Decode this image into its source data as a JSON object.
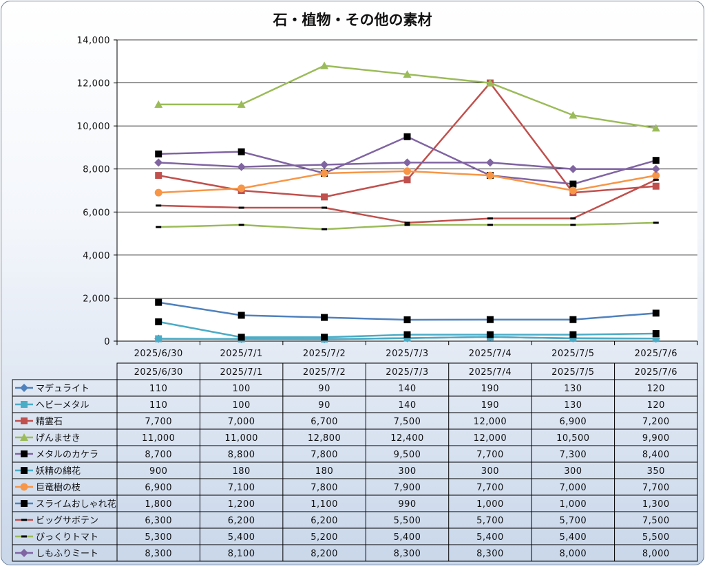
{
  "chart_data": {
    "type": "line",
    "title": "石・植物・その他の素材",
    "x": [
      "2025/6/30",
      "2025/7/1",
      "2025/7/2",
      "2025/7/3",
      "2025/7/4",
      "2025/7/5",
      "2025/7/6"
    ],
    "ylim": [
      0,
      14000
    ],
    "yticks": [
      "0",
      "2,000",
      "4,000",
      "6,000",
      "8,000",
      "10,000",
      "12,000",
      "14,000"
    ],
    "grid": true,
    "legend": "data-table-below",
    "series": [
      {
        "name": "マデュライト",
        "color": "#4f81bd",
        "marker": "diamond",
        "values": [
          110,
          100,
          90,
          140,
          190,
          130,
          120
        ],
        "labels": [
          "110",
          "100",
          "90",
          "140",
          "190",
          "130",
          "120"
        ]
      },
      {
        "name": "ヘビーメタル",
        "color": "#4bacc6",
        "marker": "square",
        "values": [
          110,
          100,
          90,
          140,
          190,
          130,
          120
        ],
        "labels": [
          "110",
          "100",
          "90",
          "140",
          "190",
          "130",
          "120"
        ]
      },
      {
        "name": "精霊石",
        "color": "#c0504d",
        "marker": "square",
        "values": [
          7700,
          7000,
          6700,
          7500,
          12000,
          6900,
          7200
        ],
        "labels": [
          "7,700",
          "7,000",
          "6,700",
          "7,500",
          "12,000",
          "6,900",
          "7,200"
        ]
      },
      {
        "name": "げんませき",
        "color": "#9bbb59",
        "marker": "triangle",
        "values": [
          11000,
          11000,
          12800,
          12400,
          12000,
          10500,
          9900
        ],
        "labels": [
          "11,000",
          "11,000",
          "12,800",
          "12,400",
          "12,000",
          "10,500",
          "9,900"
        ]
      },
      {
        "name": "メタルのカケラ",
        "color": "#8064a2",
        "marker": "square",
        "marker_color": "#000000",
        "values": [
          8700,
          8800,
          7800,
          9500,
          7700,
          7300,
          8400
        ],
        "labels": [
          "8,700",
          "8,800",
          "7,800",
          "9,500",
          "7,700",
          "7,300",
          "8,400"
        ]
      },
      {
        "name": "妖精の綿花",
        "color": "#4bacc6",
        "marker": "square",
        "marker_color": "#000000",
        "values": [
          900,
          180,
          180,
          300,
          300,
          300,
          350
        ],
        "labels": [
          "900",
          "180",
          "180",
          "300",
          "300",
          "300",
          "350"
        ]
      },
      {
        "name": "巨竜樹の枝",
        "color": "#f79646",
        "marker": "circle",
        "values": [
          6900,
          7100,
          7800,
          7900,
          7700,
          7000,
          7700
        ],
        "labels": [
          "6,900",
          "7,100",
          "7,800",
          "7,900",
          "7,700",
          "7,000",
          "7,700"
        ]
      },
      {
        "name": "スライムおしゃれ花",
        "color": "#4f81bd",
        "marker": "square",
        "marker_color": "#000000",
        "values": [
          1800,
          1200,
          1100,
          990,
          1000,
          1000,
          1300
        ],
        "labels": [
          "1,800",
          "1,200",
          "1,100",
          "990",
          "1,000",
          "1,000",
          "1,300"
        ]
      },
      {
        "name": "ビッグサボテン",
        "color": "#c0504d",
        "marker": "dash",
        "marker_color": "#000000",
        "values": [
          6300,
          6200,
          6200,
          5500,
          5700,
          5700,
          7500
        ],
        "labels": [
          "6,300",
          "6,200",
          "6,200",
          "5,500",
          "5,700",
          "5,700",
          "7,500"
        ]
      },
      {
        "name": "びっくりトマト",
        "color": "#9bbb59",
        "marker": "dash",
        "marker_color": "#000000",
        "values": [
          5300,
          5400,
          5200,
          5400,
          5400,
          5400,
          5500
        ],
        "labels": [
          "5,300",
          "5,400",
          "5,200",
          "5,400",
          "5,400",
          "5,400",
          "5,500"
        ]
      },
      {
        "name": "しもふりミート",
        "color": "#8064a2",
        "marker": "diamond",
        "values": [
          8300,
          8100,
          8200,
          8300,
          8300,
          8000,
          8000
        ],
        "labels": [
          "8,300",
          "8,100",
          "8,200",
          "8,300",
          "8,300",
          "8,000",
          "8,000"
        ]
      }
    ]
  }
}
